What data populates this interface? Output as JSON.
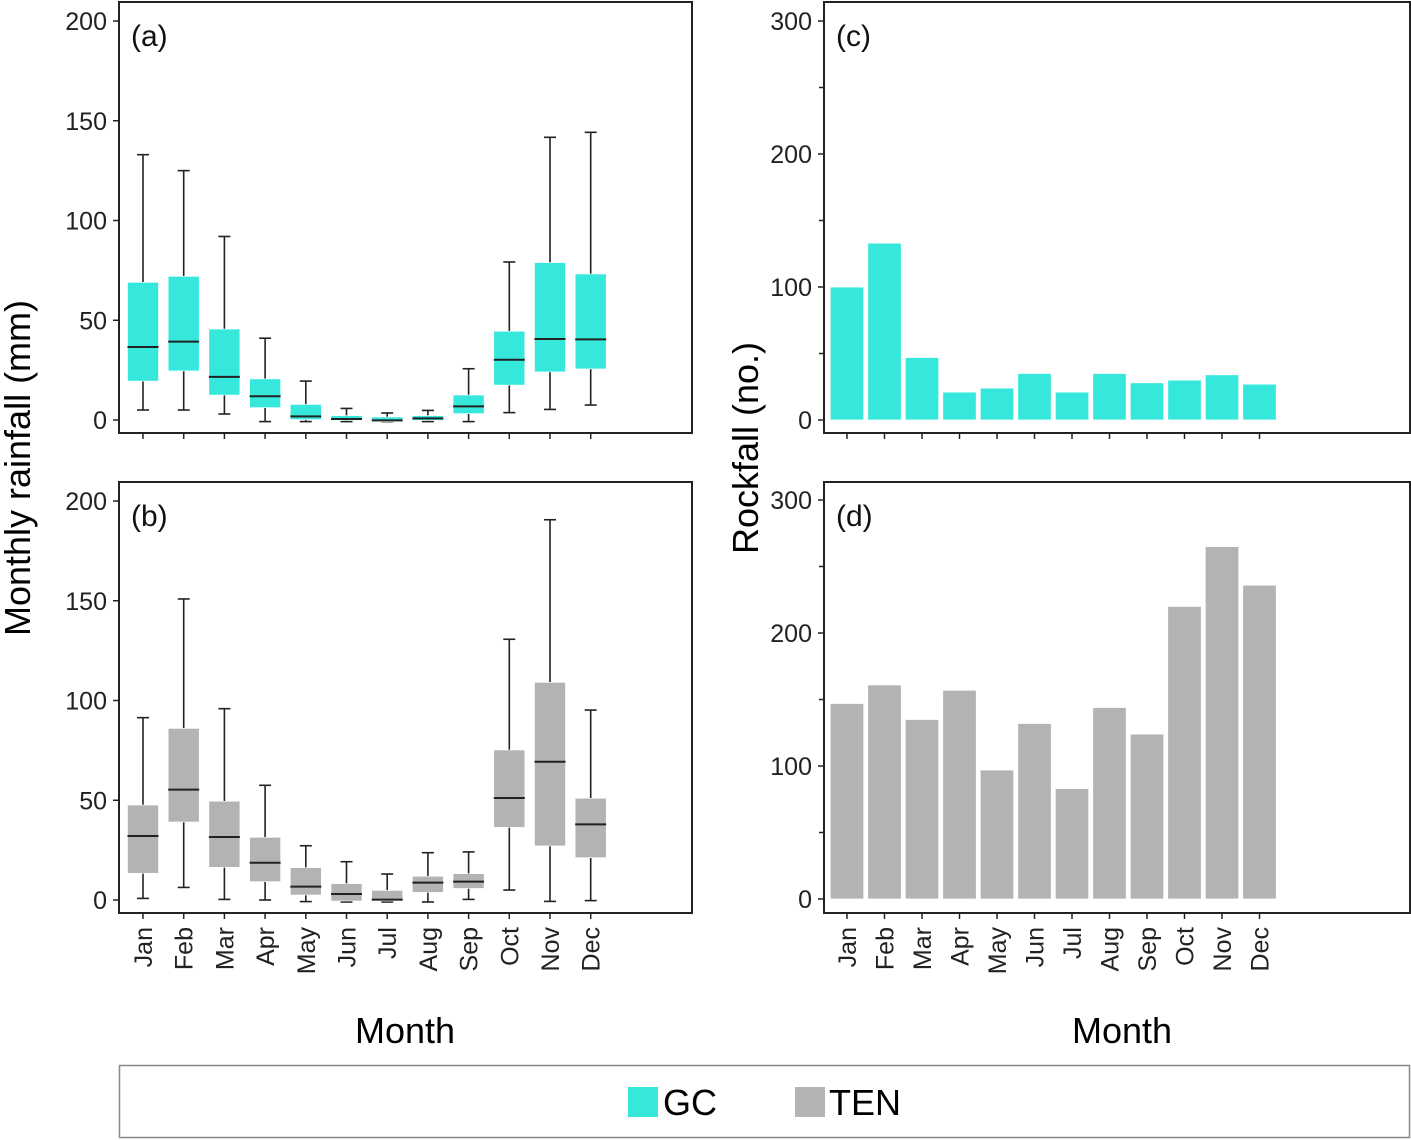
{
  "legend": {
    "items": [
      {
        "label": "GC",
        "color": "#36e8dc"
      },
      {
        "label": "TEN",
        "color": "#b3b3b3"
      }
    ]
  },
  "axes": {
    "left_ylabel": "Monthly rainfall (mm)",
    "right_ylabel": "Rockfall (no.)",
    "xlabel_left": "Month",
    "xlabel_right": "Month"
  },
  "chart_data": [
    {
      "panel": "(a)",
      "type": "box",
      "series": "GC",
      "color": "#36e8dc",
      "categories": [
        "Jan",
        "Feb",
        "Mar",
        "Apr",
        "May",
        "Jun",
        "Jul",
        "Aug",
        "Sep",
        "Oct",
        "Nov",
        "Dec"
      ],
      "ylim": [
        0,
        200
      ],
      "yticks": [
        0,
        50,
        100,
        150,
        200
      ],
      "ylabel": "Monthly rainfall (mm)",
      "boxes": [
        {
          "min": 5,
          "q1": 19.5,
          "median": 36.6,
          "q3": 69,
          "max": 133
        },
        {
          "min": 5,
          "q1": 24.6,
          "median": 39.3,
          "q3": 72,
          "max": 125
        },
        {
          "min": 3,
          "q1": 12.5,
          "median": 21.6,
          "q3": 45.6,
          "max": 92
        },
        {
          "min": -0.8,
          "q1": 6.2,
          "median": 11.9,
          "q3": 20.6,
          "max": 41
        },
        {
          "min": -0.8,
          "q1": 0.2,
          "median": 1.8,
          "q3": 7.8,
          "max": 19.5
        },
        {
          "min": -0.8,
          "q1": -0.2,
          "median": 0.5,
          "q3": 2.2,
          "max": 5.8
        },
        {
          "min": -0.8,
          "q1": -0.8,
          "median": -0.2,
          "q3": 1.5,
          "max": 3.5
        },
        {
          "min": -0.8,
          "q1": -0.2,
          "median": 0.8,
          "q3": 2.2,
          "max": 4.8
        },
        {
          "min": -0.8,
          "q1": 3.2,
          "median": 6.8,
          "q3": 12.5,
          "max": 25.7
        },
        {
          "min": 3.7,
          "q1": 17.5,
          "median": 30.2,
          "q3": 44.5,
          "max": 79.2
        },
        {
          "min": 5.3,
          "q1": 24.1,
          "median": 40.6,
          "q3": 78.9,
          "max": 141.7
        },
        {
          "min": 7.5,
          "q1": 25.6,
          "median": 40.4,
          "q3": 73.2,
          "max": 144.2
        }
      ]
    },
    {
      "panel": "(b)",
      "type": "box",
      "series": "TEN",
      "color": "#b3b3b3",
      "categories": [
        "Jan",
        "Feb",
        "Mar",
        "Apr",
        "May",
        "Jun",
        "Jul",
        "Aug",
        "Sep",
        "Oct",
        "Nov",
        "Dec"
      ],
      "ylim": [
        0,
        200
      ],
      "yticks": [
        0,
        50,
        100,
        150,
        200
      ],
      "ylabel": "Monthly rainfall (mm)",
      "xlabel": "Month",
      "boxes": [
        {
          "min": 0.8,
          "q1": 13.4,
          "median": 32.1,
          "q3": 47.6,
          "max": 91.4
        },
        {
          "min": 6.3,
          "q1": 39.1,
          "median": 55.3,
          "q3": 86,
          "max": 150.9
        },
        {
          "min": 0.3,
          "q1": 16.4,
          "median": 31.6,
          "q3": 49.5,
          "max": 95.9
        },
        {
          "min": 0,
          "q1": 9.2,
          "median": 18.7,
          "q3": 31.4,
          "max": 57.5
        },
        {
          "min": -0.8,
          "q1": 2.5,
          "median": 6.7,
          "q3": 16.2,
          "max": 27.2
        },
        {
          "min": -1,
          "q1": -0.5,
          "median": 3,
          "q3": 8.2,
          "max": 19.2
        },
        {
          "min": -1,
          "q1": -0.5,
          "median": 0.2,
          "q3": 4.8,
          "max": 13
        },
        {
          "min": -1,
          "q1": 3.8,
          "median": 8.7,
          "q3": 11.9,
          "max": 23.7
        },
        {
          "min": 0.3,
          "q1": 5.8,
          "median": 9.2,
          "q3": 13.2,
          "max": 24.1
        },
        {
          "min": 5,
          "q1": 36.4,
          "median": 51.1,
          "q3": 75.2,
          "max": 130.7
        },
        {
          "min": -0.7,
          "q1": 27.1,
          "median": 69.3,
          "q3": 109.1,
          "max": 190.6
        },
        {
          "min": -0.3,
          "q1": 21.2,
          "median": 37.9,
          "q3": 51,
          "max": 95.2
        }
      ]
    },
    {
      "panel": "(c)",
      "type": "bar",
      "series": "GC",
      "color": "#36e8dc",
      "categories": [
        "Jan",
        "Feb",
        "Mar",
        "Apr",
        "May",
        "Jun",
        "Jul",
        "Aug",
        "Sep",
        "Oct",
        "Nov",
        "Dec"
      ],
      "values": [
        100,
        133,
        47,
        21,
        24,
        35,
        21,
        35,
        28,
        30,
        34,
        27
      ],
      "ylim": [
        0,
        300
      ],
      "yticks": [
        0,
        100,
        200,
        300
      ],
      "yminor": [
        50,
        150,
        250
      ],
      "ylabel": "Rockfall (no.)"
    },
    {
      "panel": "(d)",
      "type": "bar",
      "series": "TEN",
      "color": "#b3b3b3",
      "categories": [
        "Jan",
        "Feb",
        "Mar",
        "Apr",
        "May",
        "Jun",
        "Jul",
        "Aug",
        "Sep",
        "Oct",
        "Nov",
        "Dec"
      ],
      "values": [
        147,
        161,
        135,
        157,
        97,
        132,
        83,
        144,
        124,
        220,
        265,
        236
      ],
      "ylim": [
        0,
        300
      ],
      "yticks": [
        0,
        100,
        200,
        300
      ],
      "yminor": [
        50,
        150,
        250
      ],
      "ylabel": "Rockfall (no.)",
      "xlabel": "Month"
    }
  ]
}
